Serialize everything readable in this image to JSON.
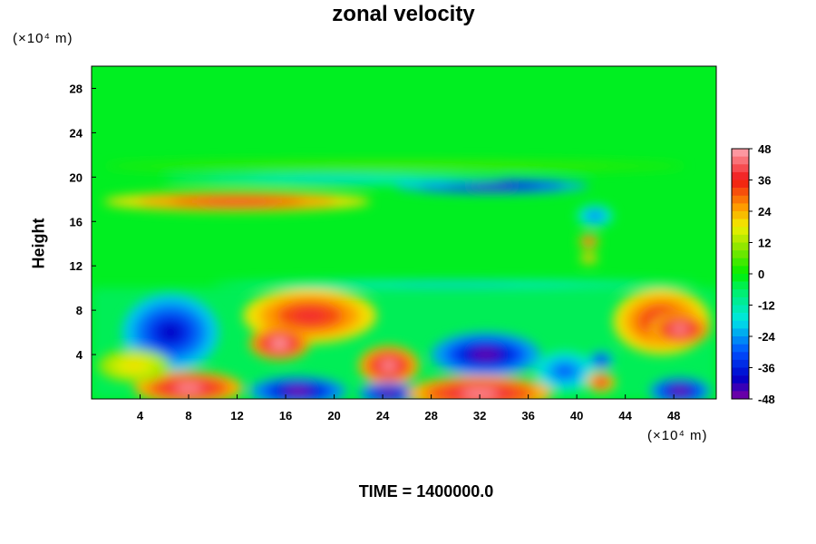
{
  "chart_data": {
    "type": "heatmap",
    "title": "zonal velocity",
    "ylabel": "Height",
    "x_unit": "(×10⁴ m)",
    "y_unit": "(×10⁴ m)",
    "footer": "TIME = 1400000.0",
    "xlim": [
      0,
      51.5
    ],
    "ylim": [
      0,
      30
    ],
    "x_ticks": [
      4,
      8,
      12,
      16,
      20,
      24,
      28,
      32,
      36,
      40,
      44,
      48
    ],
    "y_ticks": [
      4,
      8,
      12,
      16,
      20,
      24,
      28
    ],
    "colorbar": {
      "range": [
        -48,
        48
      ],
      "ticks": [
        48,
        36,
        24,
        12,
        0,
        -12,
        -24,
        -36,
        -48
      ],
      "levels": 32
    },
    "features": [
      {
        "x": 6.5,
        "y": 6,
        "rx": 4,
        "ry": 3.5,
        "value": -40
      },
      {
        "x": 18,
        "y": 7.5,
        "rx": 5.5,
        "ry": 2.5,
        "value": 38
      },
      {
        "x": 15.5,
        "y": 5,
        "rx": 2.5,
        "ry": 1.5,
        "value": 48
      },
      {
        "x": 8,
        "y": 1,
        "rx": 4.5,
        "ry": 1.5,
        "value": 46
      },
      {
        "x": 3.5,
        "y": 3,
        "rx": 3,
        "ry": 1.5,
        "value": 20
      },
      {
        "x": 17,
        "y": 0.7,
        "rx": 4,
        "ry": 1.3,
        "value": -48
      },
      {
        "x": 24.5,
        "y": 3,
        "rx": 2.5,
        "ry": 1.8,
        "value": 46
      },
      {
        "x": 24.5,
        "y": 0.5,
        "rx": 2.5,
        "ry": 1,
        "value": -48
      },
      {
        "x": 32.5,
        "y": 4,
        "rx": 4.5,
        "ry": 2,
        "value": -46
      },
      {
        "x": 32,
        "y": 0.5,
        "rx": 6,
        "ry": 1.6,
        "value": 46
      },
      {
        "x": 39,
        "y": 2.5,
        "rx": 2.5,
        "ry": 1.8,
        "value": -30
      },
      {
        "x": 42,
        "y": 1.5,
        "rx": 1.2,
        "ry": 0.9,
        "value": 40
      },
      {
        "x": 42,
        "y": 3.5,
        "rx": 1,
        "ry": 0.8,
        "value": -40
      },
      {
        "x": 47,
        "y": 7,
        "rx": 4,
        "ry": 3,
        "value": 38
      },
      {
        "x": 48.5,
        "y": 6.3,
        "rx": 2.5,
        "ry": 1.5,
        "value": 46
      },
      {
        "x": 48.5,
        "y": 0.7,
        "rx": 2.5,
        "ry": 1.2,
        "value": -48
      },
      {
        "x": 12,
        "y": 17.8,
        "rx": 11,
        "ry": 0.9,
        "value": 38
      },
      {
        "x": 33,
        "y": 19.2,
        "rx": 8,
        "ry": 0.7,
        "value": -44
      },
      {
        "x": 20,
        "y": 19.8,
        "rx": 14,
        "ry": 0.5,
        "value": -20
      },
      {
        "x": 41,
        "y": 14.2,
        "rx": 0.8,
        "ry": 0.6,
        "value": 40
      },
      {
        "x": 41,
        "y": 12.7,
        "rx": 0.7,
        "ry": 0.5,
        "value": 30
      },
      {
        "x": 41.5,
        "y": 16.5,
        "rx": 1.5,
        "ry": 1,
        "value": -28
      },
      {
        "x": 30,
        "y": 10.3,
        "rx": 20,
        "ry": 0.4,
        "value": -22
      },
      {
        "x": 25,
        "y": 21,
        "rx": 24,
        "ry": 0.5,
        "value": 6
      }
    ]
  }
}
